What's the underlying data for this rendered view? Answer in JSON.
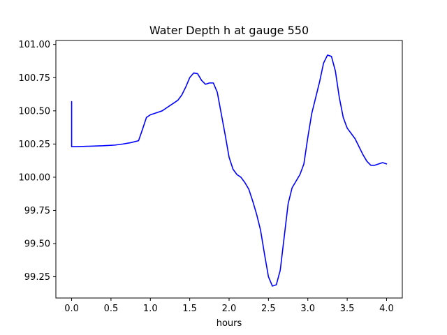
{
  "chart_data": {
    "type": "line",
    "title": "Water Depth h at gauge 550",
    "xlabel": "hours",
    "ylabel": "",
    "xlim": [
      -0.2,
      4.2
    ],
    "ylim": [
      99.09,
      101.03
    ],
    "xticks": [
      0.0,
      0.5,
      1.0,
      1.5,
      2.0,
      2.5,
      3.0,
      3.5,
      4.0
    ],
    "xtick_labels": [
      "0.0",
      "0.5",
      "1.0",
      "1.5",
      "2.0",
      "2.5",
      "3.0",
      "3.5",
      "4.0"
    ],
    "yticks": [
      99.25,
      99.5,
      99.75,
      100.0,
      100.25,
      100.5,
      100.75,
      101.0
    ],
    "ytick_labels": [
      "99.25",
      "99.50",
      "99.75",
      "100.00",
      "100.25",
      "100.50",
      "100.75",
      "101.00"
    ],
    "grid": false,
    "series": [
      {
        "color": "#0000ff",
        "x": [
          0.0,
          0.0,
          0.05,
          0.2,
          0.4,
          0.55,
          0.65,
          0.75,
          0.85,
          0.9,
          0.95,
          1.0,
          1.05,
          1.1,
          1.15,
          1.2,
          1.25,
          1.3,
          1.35,
          1.4,
          1.45,
          1.5,
          1.55,
          1.6,
          1.65,
          1.7,
          1.75,
          1.8,
          1.85,
          1.9,
          1.95,
          2.0,
          2.05,
          2.1,
          2.15,
          2.2,
          2.25,
          2.3,
          2.35,
          2.4,
          2.45,
          2.5,
          2.55,
          2.6,
          2.65,
          2.7,
          2.75,
          2.8,
          2.85,
          2.9,
          2.95,
          3.0,
          3.05,
          3.1,
          3.15,
          3.2,
          3.25,
          3.3,
          3.35,
          3.4,
          3.45,
          3.5,
          3.55,
          3.6,
          3.65,
          3.7,
          3.75,
          3.8,
          3.85,
          3.9,
          3.95,
          4.0
        ],
        "y": [
          100.57,
          100.23,
          100.23,
          100.233,
          100.237,
          100.242,
          100.25,
          100.26,
          100.275,
          100.36,
          100.45,
          100.47,
          100.48,
          100.49,
          100.5,
          100.52,
          100.54,
          100.56,
          100.58,
          100.62,
          100.68,
          100.75,
          100.785,
          100.78,
          100.73,
          100.7,
          100.71,
          100.71,
          100.64,
          100.48,
          100.32,
          100.15,
          100.06,
          100.02,
          100.0,
          99.96,
          99.91,
          99.82,
          99.72,
          99.6,
          99.42,
          99.25,
          99.18,
          99.19,
          99.3,
          99.55,
          99.8,
          99.92,
          99.97,
          100.02,
          100.1,
          100.3,
          100.48,
          100.6,
          100.72,
          100.86,
          100.92,
          100.91,
          100.8,
          100.6,
          100.45,
          100.37,
          100.33,
          100.29,
          100.23,
          100.17,
          100.12,
          100.09,
          100.09,
          100.1,
          100.11,
          100.1
        ]
      }
    ]
  }
}
